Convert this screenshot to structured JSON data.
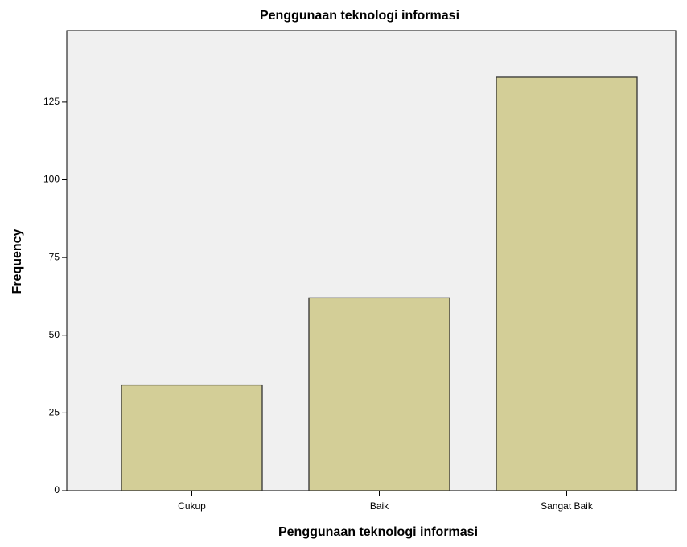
{
  "chart_data": {
    "type": "bar",
    "title": "Penggunaan teknologi informasi",
    "x_label": "Penggunaan teknologi informasi",
    "y_label": "Frequency",
    "categories": [
      "Cukup",
      "Baik",
      "Sangat Baik"
    ],
    "values": [
      34,
      62,
      133
    ],
    "color": "#d3ce97",
    "ylim": [
      0,
      148
    ],
    "yticks": [
      0,
      25,
      50,
      75,
      100,
      125
    ]
  }
}
